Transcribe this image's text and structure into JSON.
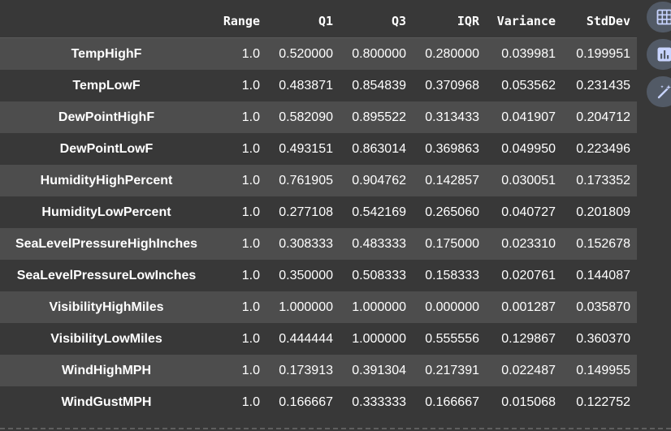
{
  "table": {
    "columns": [
      "",
      "Range",
      "Q1",
      "Q3",
      "IQR",
      "Variance",
      "StdDev"
    ],
    "rows": [
      {
        "name": "TempHighF",
        "range": "1.0",
        "q1": "0.520000",
        "q3": "0.800000",
        "iqr": "0.280000",
        "variance": "0.039981",
        "stddev": "0.199951"
      },
      {
        "name": "TempLowF",
        "range": "1.0",
        "q1": "0.483871",
        "q3": "0.854839",
        "iqr": "0.370968",
        "variance": "0.053562",
        "stddev": "0.231435"
      },
      {
        "name": "DewPointHighF",
        "range": "1.0",
        "q1": "0.582090",
        "q3": "0.895522",
        "iqr": "0.313433",
        "variance": "0.041907",
        "stddev": "0.204712"
      },
      {
        "name": "DewPointLowF",
        "range": "1.0",
        "q1": "0.493151",
        "q3": "0.863014",
        "iqr": "0.369863",
        "variance": "0.049950",
        "stddev": "0.223496"
      },
      {
        "name": "HumidityHighPercent",
        "range": "1.0",
        "q1": "0.761905",
        "q3": "0.904762",
        "iqr": "0.142857",
        "variance": "0.030051",
        "stddev": "0.173352"
      },
      {
        "name": "HumidityLowPercent",
        "range": "1.0",
        "q1": "0.277108",
        "q3": "0.542169",
        "iqr": "0.265060",
        "variance": "0.040727",
        "stddev": "0.201809"
      },
      {
        "name": "SeaLevelPressureHighInches",
        "range": "1.0",
        "q1": "0.308333",
        "q3": "0.483333",
        "iqr": "0.175000",
        "variance": "0.023310",
        "stddev": "0.152678"
      },
      {
        "name": "SeaLevelPressureLowInches",
        "range": "1.0",
        "q1": "0.350000",
        "q3": "0.508333",
        "iqr": "0.158333",
        "variance": "0.020761",
        "stddev": "0.144087"
      },
      {
        "name": "VisibilityHighMiles",
        "range": "1.0",
        "q1": "1.000000",
        "q3": "1.000000",
        "iqr": "0.000000",
        "variance": "0.001287",
        "stddev": "0.035870"
      },
      {
        "name": "VisibilityLowMiles",
        "range": "1.0",
        "q1": "0.444444",
        "q3": "1.000000",
        "iqr": "0.555556",
        "variance": "0.129867",
        "stddev": "0.360370"
      },
      {
        "name": "WindHighMPH",
        "range": "1.0",
        "q1": "0.173913",
        "q3": "0.391304",
        "iqr": "0.217391",
        "variance": "0.022487",
        "stddev": "0.149955"
      },
      {
        "name": "WindGustMPH",
        "range": "1.0",
        "q1": "0.166667",
        "q3": "0.333333",
        "iqr": "0.166667",
        "variance": "0.015068",
        "stddev": "0.122752"
      }
    ]
  },
  "toolbar": {
    "icons": [
      "table-grid-icon",
      "bar-chart-icon",
      "magic-wand-icon"
    ]
  },
  "colors": {
    "background": "#383838",
    "row_stripe": "#4d4d4d",
    "text": "#ffffff",
    "toolbar_button": "#525a66",
    "toolbar_icon": "#c8d4ff"
  }
}
